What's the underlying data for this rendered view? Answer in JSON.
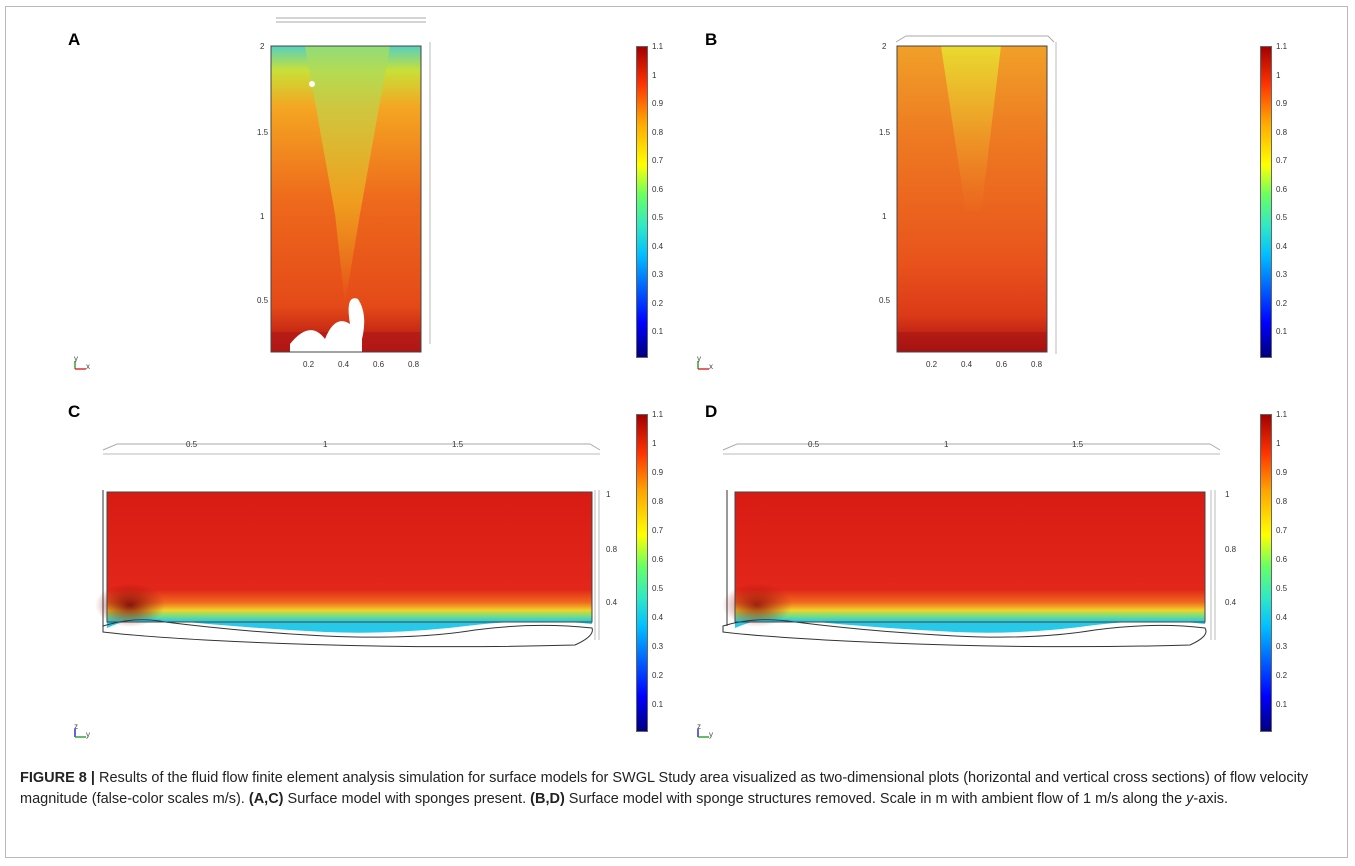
{
  "panels": {
    "A": {
      "label": "A",
      "x_ticks": [
        "0.2",
        "0.4",
        "0.6",
        "0.8"
      ],
      "y_ticks": [
        "2",
        "1.5",
        "1",
        "0.5"
      ],
      "axes": [
        "y",
        "x"
      ]
    },
    "B": {
      "label": "B",
      "x_ticks": [
        "0.2",
        "0.4",
        "0.6",
        "0.8"
      ],
      "y_ticks": [
        "2",
        "1.5",
        "1",
        "0.5"
      ],
      "axes": [
        "y",
        "x"
      ]
    },
    "C": {
      "label": "C",
      "top_ticks": [
        "0.5",
        "1",
        "1.5"
      ],
      "side_ticks": [
        "1",
        "0.8",
        "0.4"
      ],
      "axes": [
        "z",
        "y"
      ]
    },
    "D": {
      "label": "D",
      "top_ticks": [
        "0.5",
        "1",
        "1.5"
      ],
      "side_ticks": [
        "1",
        "0.8",
        "0.4"
      ],
      "axes": [
        "z",
        "y"
      ]
    }
  },
  "colorbar": {
    "ticks": [
      "1.1",
      "1",
      "0.9",
      "0.8",
      "0.7",
      "0.6",
      "0.5",
      "0.4",
      "0.3",
      "0.2",
      "0.1"
    ],
    "colors": {
      "low": "#00007f",
      "mid": "#66ff66",
      "high": "#a50000"
    }
  },
  "caption": {
    "figure_label": "FIGURE 8 |",
    "text1": " Results of the fluid flow finite element analysis simulation for surface models for SWGL Study area visualized as two-dimensional plots (horizontal and vertical cross sections) of flow velocity magnitude (false-color scales m/s). ",
    "ac_label": "(A,C)",
    "text2": " Surface model with sponges present. ",
    "bd_label": "(B,D)",
    "text3": " Surface model with sponge structures removed. Scale in m with ambient flow of 1 m/s along the ",
    "axis_name": "y",
    "text4": "-axis."
  }
}
